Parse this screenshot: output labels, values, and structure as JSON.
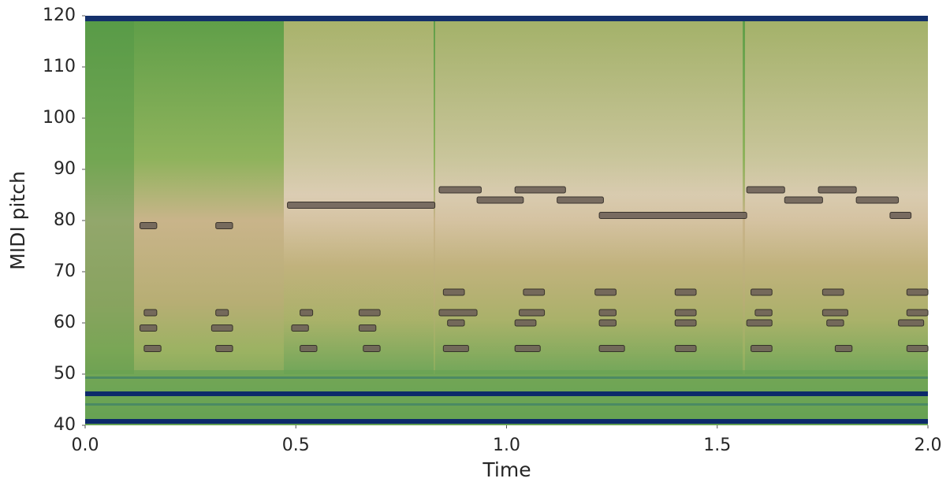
{
  "chart_data": {
    "type": "piano-roll",
    "xlabel": "Time",
    "ylabel": "MIDI pitch",
    "xlim": [
      0,
      2
    ],
    "ylim": [
      40,
      120
    ],
    "xticks": [
      {
        "value": 0,
        "label": "0.0"
      },
      {
        "value": 0.5,
        "label": "0.5"
      },
      {
        "value": 1,
        "label": "1.0"
      },
      {
        "value": 1.5,
        "label": "1.5"
      },
      {
        "value": 2,
        "label": "2.0"
      }
    ],
    "yticks": [
      40,
      50,
      60,
      70,
      80,
      90,
      100,
      110,
      120
    ],
    "note_color": "#6e6259",
    "notes": [
      {
        "start": 0.13,
        "end": 0.17,
        "pitch": 79
      },
      {
        "start": 0.14,
        "end": 0.17,
        "pitch": 62
      },
      {
        "start": 0.13,
        "end": 0.17,
        "pitch": 59
      },
      {
        "start": 0.14,
        "end": 0.18,
        "pitch": 55
      },
      {
        "start": 0.31,
        "end": 0.35,
        "pitch": 79
      },
      {
        "start": 0.31,
        "end": 0.34,
        "pitch": 62
      },
      {
        "start": 0.3,
        "end": 0.35,
        "pitch": 59
      },
      {
        "start": 0.31,
        "end": 0.35,
        "pitch": 55
      },
      {
        "start": 0.51,
        "end": 0.54,
        "pitch": 62
      },
      {
        "start": 0.49,
        "end": 0.53,
        "pitch": 59
      },
      {
        "start": 0.51,
        "end": 0.55,
        "pitch": 55
      },
      {
        "start": 0.65,
        "end": 0.7,
        "pitch": 62
      },
      {
        "start": 0.65,
        "end": 0.69,
        "pitch": 59
      },
      {
        "start": 0.66,
        "end": 0.7,
        "pitch": 55
      },
      {
        "start": 0.48,
        "end": 0.83,
        "pitch": 83
      },
      {
        "start": 0.84,
        "end": 0.94,
        "pitch": 86
      },
      {
        "start": 0.93,
        "end": 1.04,
        "pitch": 84
      },
      {
        "start": 1.02,
        "end": 1.14,
        "pitch": 86
      },
      {
        "start": 1.12,
        "end": 1.23,
        "pitch": 84
      },
      {
        "start": 1.22,
        "end": 1.57,
        "pitch": 81
      },
      {
        "start": 1.57,
        "end": 1.66,
        "pitch": 86
      },
      {
        "start": 1.66,
        "end": 1.75,
        "pitch": 84
      },
      {
        "start": 1.74,
        "end": 1.83,
        "pitch": 86
      },
      {
        "start": 1.83,
        "end": 1.93,
        "pitch": 84
      },
      {
        "start": 1.91,
        "end": 1.96,
        "pitch": 81
      },
      {
        "start": 0.85,
        "end": 0.9,
        "pitch": 66
      },
      {
        "start": 0.84,
        "end": 0.93,
        "pitch": 62
      },
      {
        "start": 0.86,
        "end": 0.9,
        "pitch": 60
      },
      {
        "start": 0.85,
        "end": 0.91,
        "pitch": 55
      },
      {
        "start": 1.04,
        "end": 1.09,
        "pitch": 66
      },
      {
        "start": 1.03,
        "end": 1.09,
        "pitch": 62
      },
      {
        "start": 1.02,
        "end": 1.07,
        "pitch": 60
      },
      {
        "start": 1.02,
        "end": 1.08,
        "pitch": 55
      },
      {
        "start": 1.21,
        "end": 1.26,
        "pitch": 66
      },
      {
        "start": 1.22,
        "end": 1.26,
        "pitch": 62
      },
      {
        "start": 1.22,
        "end": 1.26,
        "pitch": 60
      },
      {
        "start": 1.22,
        "end": 1.28,
        "pitch": 55
      },
      {
        "start": 1.4,
        "end": 1.45,
        "pitch": 66
      },
      {
        "start": 1.4,
        "end": 1.45,
        "pitch": 62
      },
      {
        "start": 1.4,
        "end": 1.45,
        "pitch": 60
      },
      {
        "start": 1.4,
        "end": 1.45,
        "pitch": 55
      },
      {
        "start": 1.58,
        "end": 1.63,
        "pitch": 66
      },
      {
        "start": 1.59,
        "end": 1.63,
        "pitch": 62
      },
      {
        "start": 1.57,
        "end": 1.63,
        "pitch": 60
      },
      {
        "start": 1.58,
        "end": 1.63,
        "pitch": 55
      },
      {
        "start": 1.75,
        "end": 1.8,
        "pitch": 66
      },
      {
        "start": 1.75,
        "end": 1.81,
        "pitch": 62
      },
      {
        "start": 1.76,
        "end": 1.8,
        "pitch": 60
      },
      {
        "start": 1.78,
        "end": 1.82,
        "pitch": 55
      },
      {
        "start": 1.95,
        "end": 2.0,
        "pitch": 66
      },
      {
        "start": 1.95,
        "end": 2.0,
        "pitch": 62
      },
      {
        "start": 1.93,
        "end": 1.99,
        "pitch": 60
      },
      {
        "start": 1.95,
        "end": 2.0,
        "pitch": 55
      }
    ]
  }
}
